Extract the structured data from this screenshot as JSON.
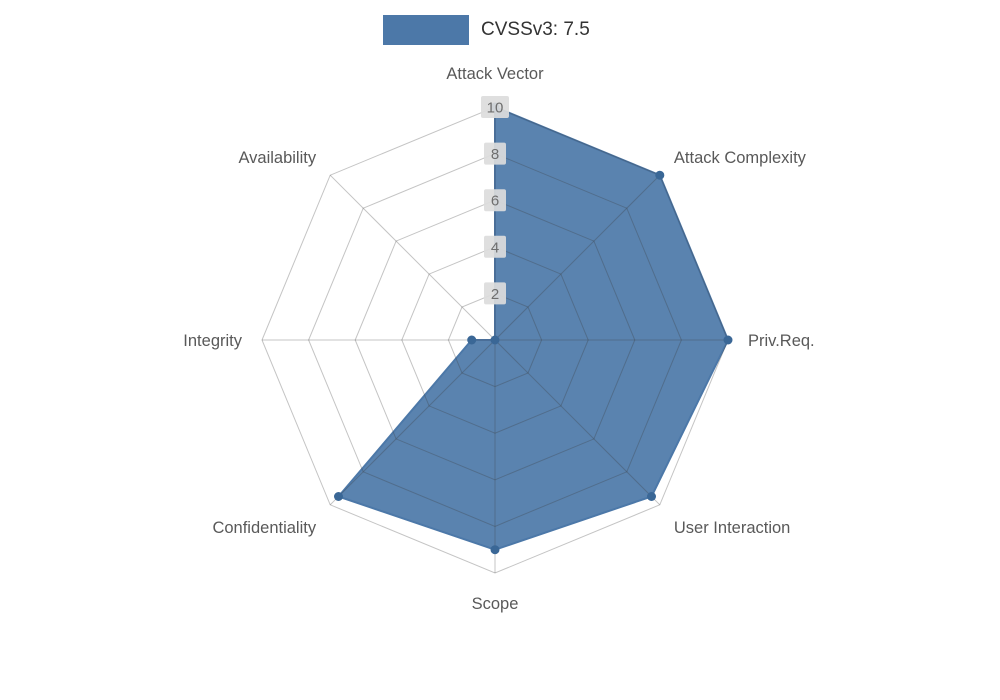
{
  "legend": {
    "label": "CVSSv3: 7.5",
    "swatch_color": "#4c78a8"
  },
  "chart_data": {
    "type": "radar",
    "title": "",
    "categories": [
      "Attack Vector",
      "Attack Complexity",
      "Priv.Req.",
      "User Interaction",
      "Scope",
      "Confidentiality",
      "Integrity",
      "Availability"
    ],
    "series": [
      {
        "name": "CVSSv3: 7.5",
        "values": [
          10,
          10,
          10,
          9.5,
          9,
          9.5,
          1,
          0
        ]
      }
    ],
    "rmax": 10,
    "ticks": [
      2,
      4,
      6,
      8,
      10
    ],
    "grid": true,
    "legend_position": "top",
    "fill_color": "#4c78a8",
    "marker_color": "#3a6796",
    "grid_color": "#bdbdbd",
    "tick_box_color": "#dcdcdc",
    "axis_label_color": "#595959"
  }
}
